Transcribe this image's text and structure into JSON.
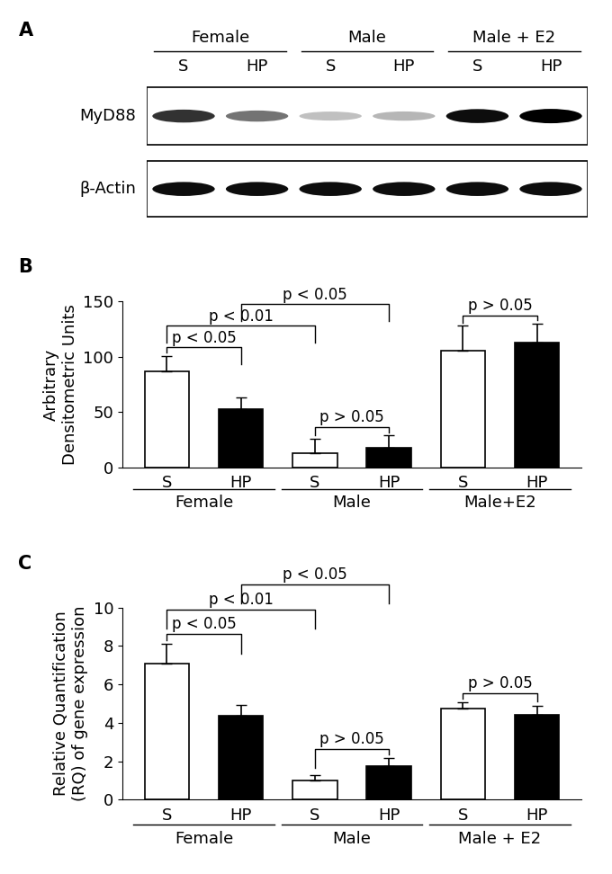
{
  "blot": {
    "panel": "A",
    "rows": [
      "MyD88",
      "β-Actin"
    ],
    "groups": [
      {
        "label": "Female",
        "lanes": [
          "S",
          "HP"
        ]
      },
      {
        "label": "Male",
        "lanes": [
          "S",
          "HP"
        ]
      },
      {
        "label": "Male + E2",
        "lanes": [
          "S",
          "HP"
        ]
      }
    ]
  },
  "chart_data": [
    {
      "type": "bar",
      "panel": "B",
      "y_label": "Arbitrary\nDensitometric Units",
      "categories": [
        "S",
        "HP",
        "S",
        "HP",
        "S",
        "HP"
      ],
      "colors": [
        "#ffffff",
        "#000000",
        "#ffffff",
        "#000000",
        "#ffffff",
        "#000000"
      ],
      "values": [
        87,
        53,
        13,
        18,
        106,
        113
      ],
      "errors": [
        14,
        10,
        13,
        11,
        22,
        17
      ],
      "ylim": [
        0,
        150
      ],
      "yticks": [
        0,
        50,
        100,
        150
      ],
      "grid": false,
      "groups": [
        {
          "label": "Female",
          "categories": [
            0,
            1
          ]
        },
        {
          "label": "Male",
          "categories": [
            2,
            3
          ]
        },
        {
          "label": "Male+E2",
          "categories": [
            4,
            5
          ]
        }
      ],
      "annotations": [
        {
          "text": "p < 0.01",
          "between": [
            0,
            2
          ]
        },
        {
          "text": "p < 0.05",
          "between": [
            0,
            1
          ]
        },
        {
          "text": "p < 0.05",
          "between": [
            1,
            3
          ]
        },
        {
          "text": "p > 0.05",
          "between": [
            2,
            3
          ]
        },
        {
          "text": "p > 0.05",
          "between": [
            4,
            5
          ]
        }
      ]
    },
    {
      "type": "bar",
      "panel": "C",
      "y_label": "Relative Quantification\n(RQ) of gene expression",
      "categories": [
        "S",
        "HP",
        "S",
        "HP",
        "S",
        "HP"
      ],
      "colors": [
        "#ffffff",
        "#000000",
        "#ffffff",
        "#000000",
        "#ffffff",
        "#000000"
      ],
      "values": [
        7.1,
        4.35,
        1.0,
        1.75,
        4.75,
        4.4
      ],
      "errors": [
        1.0,
        0.6,
        0.3,
        0.4,
        0.3,
        0.5
      ],
      "ylim": [
        0,
        10
      ],
      "yticks": [
        0,
        2,
        4,
        6,
        8,
        10
      ],
      "grid": false,
      "groups": [
        {
          "label": "Female",
          "categories": [
            0,
            1
          ]
        },
        {
          "label": "Male",
          "categories": [
            2,
            3
          ]
        },
        {
          "label": "Male + E2",
          "categories": [
            4,
            5
          ]
        }
      ],
      "annotations": [
        {
          "text": "p < 0.01",
          "between": [
            0,
            2
          ]
        },
        {
          "text": "p < 0.05",
          "between": [
            0,
            1
          ]
        },
        {
          "text": "p < 0.05",
          "between": [
            1,
            3
          ]
        },
        {
          "text": "p > 0.05",
          "between": [
            2,
            3
          ]
        },
        {
          "text": "p > 0.05",
          "between": [
            4,
            5
          ]
        }
      ]
    }
  ]
}
